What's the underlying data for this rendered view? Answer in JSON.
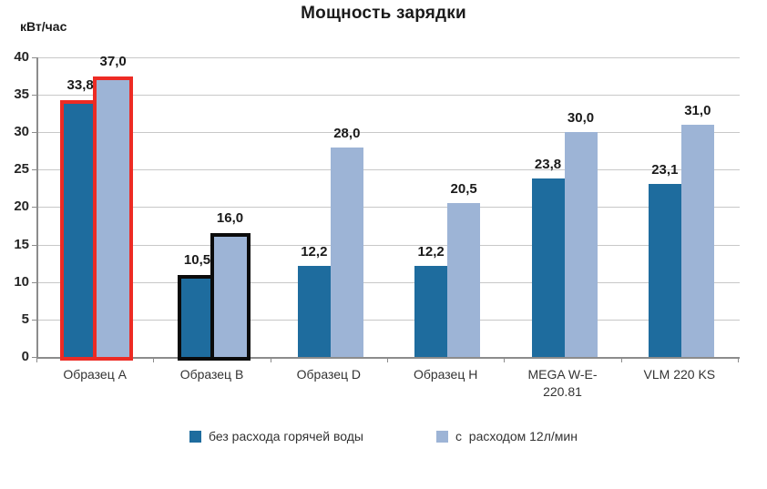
{
  "title": "Мощность зарядки",
  "y_axis_unit": "кВт/час",
  "chart_data": {
    "type": "bar",
    "title": "Мощность зарядки",
    "ylabel": "кВт/час",
    "xlabel": "",
    "ylim": [
      0,
      40
    ],
    "ytick_step": 5,
    "grid": true,
    "legend_position": "bottom",
    "categories": [
      "Образец A",
      "Образец B",
      "Образец D",
      "Образец H",
      "MEGA W-E-220.81",
      "VLM 220 KS"
    ],
    "series": [
      {
        "name": "без расхода горячей воды",
        "color": "#1E6C9E",
        "values": [
          33.8,
          10.5,
          12.2,
          12.2,
          23.8,
          23.1
        ]
      },
      {
        "name": "с  расходом 12л/мин",
        "color": "#9DB4D6",
        "values": [
          37.0,
          16.0,
          28.0,
          20.5,
          30.0,
          31.0
        ]
      }
    ],
    "data_labels": [
      [
        "33,8",
        "10,5",
        "12,2",
        "12,2",
        "23,8",
        "23,1"
      ],
      [
        "37,0",
        "16,0",
        "28,0",
        "20,5",
        "30,0",
        "31,0"
      ]
    ],
    "highlights": [
      {
        "category_index": 0,
        "category": "Образец A",
        "outline_color": "#ED2B24"
      },
      {
        "category_index": 1,
        "category": "Образец B",
        "outline_color": "#0B0B0B"
      }
    ],
    "axis_color": "#8C8C8C",
    "gridline_color": "#C8C8C8"
  }
}
